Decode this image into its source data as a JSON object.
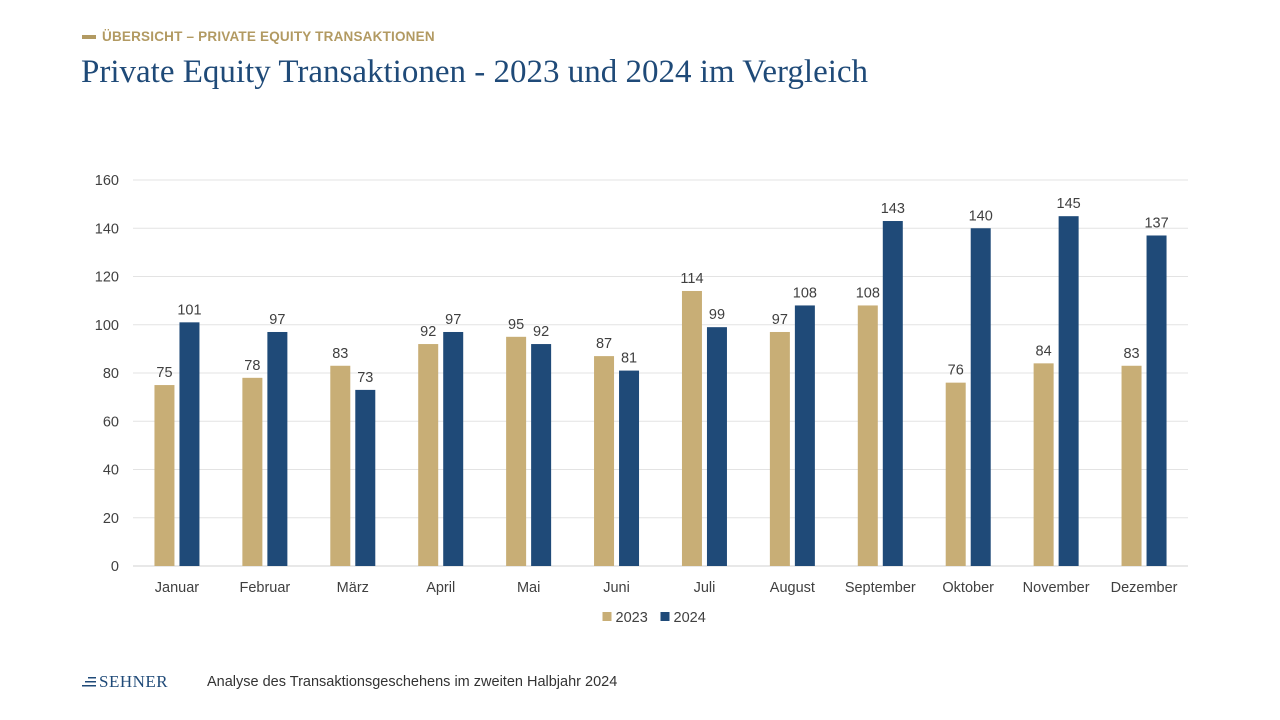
{
  "header": {
    "kicker": "ÜBERSICHT – PRIVATE EQUITY TRANSAKTIONEN",
    "title": "Private Equity Transaktionen - 2023 und 2024 im Vergleich"
  },
  "footer": {
    "logo_text": "SEHNER",
    "caption": "Analyse des Transaktionsgeschehens im zweiten Halbjahr 2024"
  },
  "colors": {
    "gold": "#C8AE76",
    "navy": "#1F4A78",
    "kicker": "#B29A62",
    "title": "#1F4A78",
    "grid": "#E3E3E3",
    "label": "#404040"
  },
  "chart_data": {
    "type": "bar",
    "categories": [
      "Januar",
      "Februar",
      "März",
      "April",
      "Mai",
      "Juni",
      "Juli",
      "August",
      "September",
      "Oktober",
      "November",
      "Dezember"
    ],
    "series": [
      {
        "name": "2023",
        "color": "#C8AE76",
        "values": [
          75,
          78,
          83,
          92,
          95,
          87,
          114,
          97,
          108,
          76,
          84,
          83
        ]
      },
      {
        "name": "2024",
        "color": "#1F4A78",
        "values": [
          101,
          97,
          73,
          97,
          92,
          81,
          99,
          108,
          143,
          140,
          145,
          137
        ]
      }
    ],
    "ylim": [
      0,
      160
    ],
    "yticks": [
      0,
      20,
      40,
      60,
      80,
      100,
      120,
      140,
      160
    ],
    "grid": true,
    "legend": "bottom-center",
    "data_labels": true
  }
}
